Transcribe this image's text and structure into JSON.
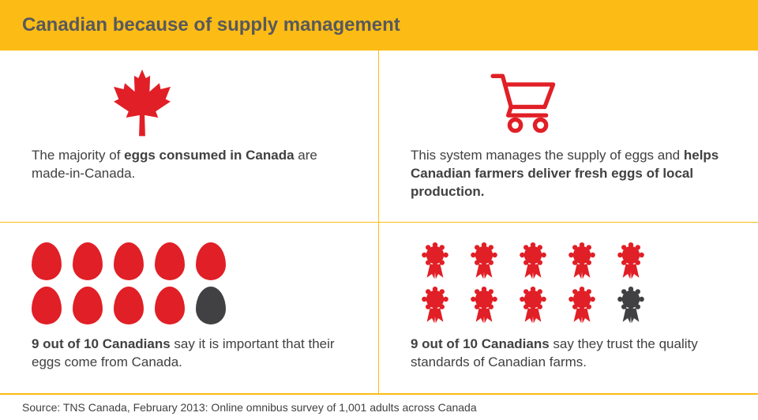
{
  "colors": {
    "header_bg": "#fdbc15",
    "header_text": "#58595b",
    "accent": "#e11f26",
    "dark": "#414042",
    "text": "#414042",
    "divider": "#fdbc15"
  },
  "header": {
    "title": "Canadian because of supply management"
  },
  "panels": {
    "top_left": {
      "icon": "maple-leaf",
      "text_pre": "The majority of ",
      "text_bold": "eggs consumed in Canada",
      "text_post": " are made-in-Canada."
    },
    "top_right": {
      "icon": "shopping-cart",
      "text_pre": "This system manages the supply of eggs and ",
      "text_bold": "helps Canadian farmers deliver fresh eggs of local production.",
      "text_post": ""
    },
    "bottom_left": {
      "type": "eggs",
      "total": 10,
      "highlighted": 9,
      "highlight_color": "#e11f26",
      "other_color": "#414042",
      "stat_bold": "9 out of 10 Canadians",
      "stat_text": " say it is important that their eggs come from Canada."
    },
    "bottom_right": {
      "type": "ribbons",
      "total": 10,
      "highlighted": 9,
      "highlight_color": "#e11f26",
      "other_color": "#414042",
      "stat_bold": "9 out of 10 Canadians",
      "stat_text": " say they trust the quality standards of Canadian farms."
    }
  },
  "source": "Source: TNS Canada, February 2013: Online omnibus survey of 1,001 adults across Canada"
}
